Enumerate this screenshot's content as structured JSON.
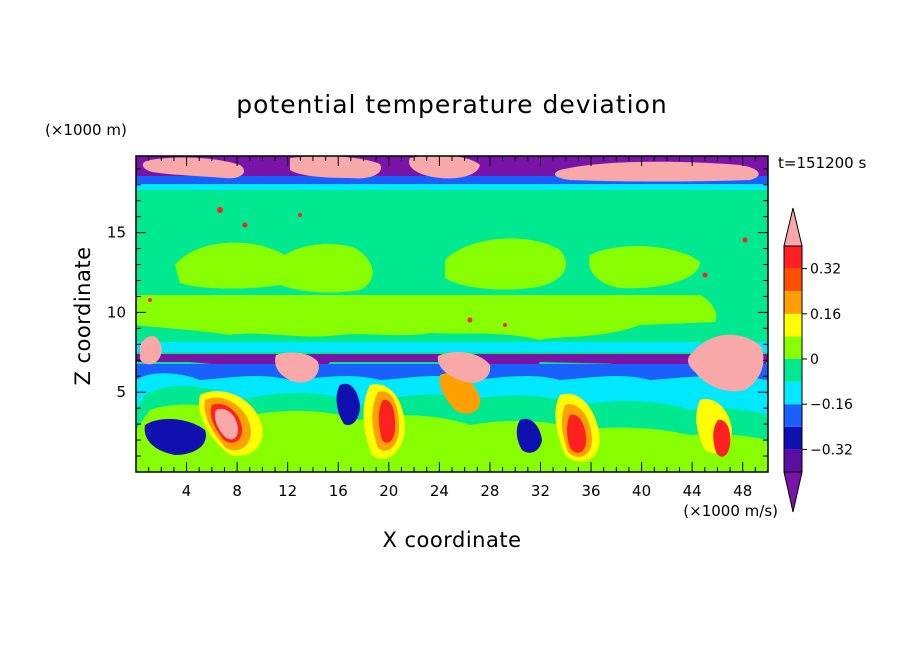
{
  "chart_data": {
    "type": "heatmap",
    "title": "potential temperature deviation",
    "xlabel": "X coordinate",
    "ylabel": "Z coordinate",
    "x_unit": "(×1000 m/s)",
    "y_unit": "(×1000 m)",
    "time_label": "t=151200 s",
    "xlim": [
      0,
      50
    ],
    "ylim": [
      0,
      19.8
    ],
    "x_ticks": [
      4,
      8,
      12,
      16,
      20,
      24,
      28,
      32,
      36,
      40,
      44,
      48
    ],
    "y_ticks": [
      5,
      10,
      15
    ],
    "colorbar": {
      "levels": [
        -0.4,
        -0.32,
        -0.24,
        -0.16,
        -0.08,
        0,
        0.08,
        0.16,
        0.24,
        0.32,
        0.4
      ],
      "tick_values": [
        -0.32,
        -0.16,
        0,
        0.16,
        0.32
      ],
      "tick_labels": [
        "−0.32",
        "−0.16",
        "0",
        "0.16",
        "0.32"
      ],
      "colors": [
        "#7a14a8",
        "#5a0fa0",
        "#1010b0",
        "#1a60ff",
        "#00e8ff",
        "#00e890",
        "#88ff00",
        "#ffff00",
        "#ffa000",
        "#ff5000",
        "#ff2020",
        "#f8a8a8"
      ],
      "extend": "both"
    }
  }
}
